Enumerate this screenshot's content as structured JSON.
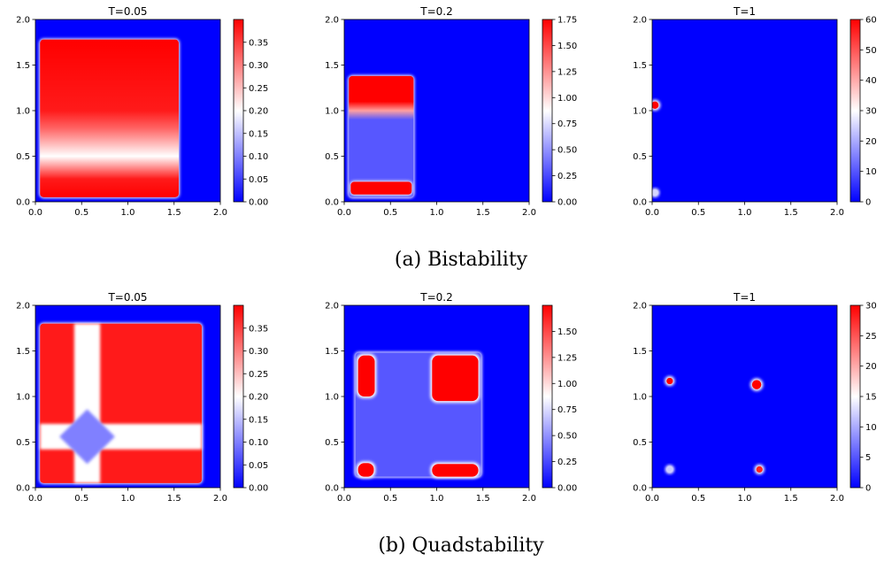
{
  "figure": {
    "rows": [
      {
        "caption": "(a) Bistability"
      },
      {
        "caption": "(b) Quadstability"
      }
    ]
  },
  "chart_data": [
    {
      "type": "heatmap",
      "row": 0,
      "col": 0,
      "title": "T=0.05",
      "xlim": [
        0,
        2
      ],
      "ylim": [
        0,
        2
      ],
      "xticks": [
        "0.0",
        "0.5",
        "1.0",
        "1.5",
        "2.0"
      ],
      "yticks": [
        "0.0",
        "0.5",
        "1.0",
        "1.5",
        "2.0"
      ],
      "colorbar": {
        "range": [
          0,
          0.4
        ],
        "ticks": [
          "0.00",
          "0.05",
          "0.10",
          "0.15",
          "0.20",
          "0.25",
          "0.30",
          "0.35"
        ],
        "tick_values": [
          0,
          0.05,
          0.1,
          0.15,
          0.2,
          0.25,
          0.3,
          0.35
        ]
      },
      "colormap": [
        "#0000ff",
        "#ffffff",
        "#ff0000"
      ],
      "regions": [
        {
          "shape": "rect",
          "x": [
            0.05,
            1.55
          ],
          "y": [
            0.05,
            1.78
          ],
          "gradient_y": [
            [
              0.05,
              0.4
            ],
            [
              0.25,
              0.38
            ],
            [
              0.5,
              0.2
            ],
            [
              0.8,
              0.32
            ],
            [
              1.0,
              0.38
            ],
            [
              1.78,
              0.4
            ]
          ]
        }
      ]
    },
    {
      "type": "heatmap",
      "row": 0,
      "col": 1,
      "title": "T=0.2",
      "xlim": [
        0,
        2
      ],
      "ylim": [
        0,
        2
      ],
      "xticks": [
        "0.0",
        "0.5",
        "1.0",
        "1.5",
        "2.0"
      ],
      "yticks": [
        "0.0",
        "0.5",
        "1.0",
        "1.5",
        "2.0"
      ],
      "colorbar": {
        "range": [
          0,
          1.75
        ],
        "ticks": [
          "0.00",
          "0.25",
          "0.50",
          "0.75",
          "1.00",
          "1.25",
          "1.50",
          "1.75"
        ],
        "tick_values": [
          0,
          0.25,
          0.5,
          0.75,
          1,
          1.25,
          1.5,
          1.75
        ]
      },
      "colormap": [
        "#0000ff",
        "#ffffff",
        "#ff0000"
      ],
      "regions": [
        {
          "shape": "rect",
          "x": [
            0.05,
            0.75
          ],
          "y": [
            0.05,
            1.38
          ],
          "gradient_y": [
            [
              0.05,
              0.3
            ],
            [
              0.9,
              0.3
            ],
            [
              1.0,
              1.2
            ],
            [
              1.1,
              1.75
            ],
            [
              1.38,
              1.75
            ]
          ]
        },
        {
          "shape": "rect",
          "x": [
            0.07,
            0.73
          ],
          "y": [
            0.08,
            0.22
          ],
          "value": 1.75
        }
      ]
    },
    {
      "type": "heatmap",
      "row": 0,
      "col": 2,
      "title": "T=1",
      "xlim": [
        0,
        2
      ],
      "ylim": [
        0,
        2
      ],
      "xticks": [
        "0.0",
        "0.5",
        "1.0",
        "1.5",
        "2.0"
      ],
      "yticks": [
        "0.0",
        "0.5",
        "1.0",
        "1.5",
        "2.0"
      ],
      "colorbar": {
        "range": [
          0,
          60
        ],
        "ticks": [
          "0",
          "10",
          "20",
          "30",
          "40",
          "50",
          "60"
        ],
        "tick_values": [
          0,
          10,
          20,
          30,
          40,
          50,
          60
        ]
      },
      "colormap": [
        "#0000ff",
        "#ffffff",
        "#ff0000"
      ],
      "regions": [
        {
          "shape": "spot",
          "x": 0.03,
          "y": 1.06,
          "r": 0.04,
          "value": 60
        },
        {
          "shape": "spot",
          "x": 0.03,
          "y": 0.1,
          "r": 0.03,
          "value": 25
        }
      ]
    },
    {
      "type": "heatmap",
      "row": 1,
      "col": 0,
      "title": "T=0.05",
      "xlim": [
        0,
        2
      ],
      "ylim": [
        0,
        2
      ],
      "xticks": [
        "0.0",
        "0.5",
        "1.0",
        "1.5",
        "2.0"
      ],
      "yticks": [
        "0.0",
        "0.5",
        "1.0",
        "1.5",
        "2.0"
      ],
      "colorbar": {
        "range": [
          0,
          0.4
        ],
        "ticks": [
          "0.00",
          "0.05",
          "0.10",
          "0.15",
          "0.20",
          "0.25",
          "0.30",
          "0.35"
        ],
        "tick_values": [
          0,
          0.05,
          0.1,
          0.15,
          0.2,
          0.25,
          0.3,
          0.35
        ]
      },
      "colormap": [
        "#0000ff",
        "#ffffff",
        "#ff0000"
      ],
      "regions": [
        {
          "shape": "rect",
          "x": [
            0.05,
            1.8
          ],
          "y": [
            0.05,
            1.8
          ],
          "value": 0.38
        },
        {
          "shape": "band",
          "orient": "vertical",
          "center": 0.56,
          "width": 0.28,
          "value": 0.2
        },
        {
          "shape": "band",
          "orient": "horizontal",
          "center": 0.56,
          "width": 0.28,
          "value": 0.2
        },
        {
          "shape": "diamond",
          "x": 0.56,
          "y": 0.56,
          "r": 0.3,
          "value": 0.1
        }
      ]
    },
    {
      "type": "heatmap",
      "row": 1,
      "col": 1,
      "title": "T=0.2",
      "xlim": [
        0,
        2
      ],
      "ylim": [
        0,
        2
      ],
      "xticks": [
        "0.0",
        "0.5",
        "1.0",
        "1.5",
        "2.0"
      ],
      "yticks": [
        "0.0",
        "0.5",
        "1.0",
        "1.5",
        "2.0"
      ],
      "colorbar": {
        "range": [
          0,
          1.75
        ],
        "ticks": [
          "0.00",
          "0.25",
          "0.50",
          "0.75",
          "1.00",
          "1.25",
          "1.50"
        ],
        "tick_values": [
          0,
          0.25,
          0.5,
          0.75,
          1,
          1.25,
          1.5
        ]
      },
      "colormap": [
        "#0000ff",
        "#ffffff",
        "#ff0000"
      ],
      "regions": [
        {
          "shape": "rect",
          "x": [
            0.12,
            1.48
          ],
          "y": [
            0.12,
            1.48
          ],
          "value": 0.3
        },
        {
          "shape": "blob",
          "x": [
            0.15,
            0.33
          ],
          "y": [
            1.0,
            1.45
          ],
          "value": 1.75
        },
        {
          "shape": "blob",
          "x": [
            0.95,
            1.45
          ],
          "y": [
            0.95,
            1.45
          ],
          "value": 1.75
        },
        {
          "shape": "blob",
          "x": [
            0.15,
            0.32
          ],
          "y": [
            0.12,
            0.27
          ],
          "value": 1.75
        },
        {
          "shape": "blob",
          "x": [
            0.95,
            1.45
          ],
          "y": [
            0.12,
            0.26
          ],
          "value": 1.75
        }
      ]
    },
    {
      "type": "heatmap",
      "row": 1,
      "col": 2,
      "title": "T=1",
      "xlim": [
        0,
        2
      ],
      "ylim": [
        0,
        2
      ],
      "xticks": [
        "0.0",
        "0.5",
        "1.0",
        "1.5",
        "2.0"
      ],
      "yticks": [
        "0.0",
        "0.5",
        "1.0",
        "1.5",
        "2.0"
      ],
      "colorbar": {
        "range": [
          0,
          30
        ],
        "ticks": [
          "0",
          "5",
          "10",
          "15",
          "20",
          "25",
          "30"
        ],
        "tick_values": [
          0,
          5,
          10,
          15,
          20,
          25,
          30
        ]
      },
      "colormap": [
        "#0000ff",
        "#ffffff",
        "#ff0000"
      ],
      "regions": [
        {
          "shape": "spot",
          "x": 0.19,
          "y": 1.17,
          "r": 0.035,
          "value": 30
        },
        {
          "shape": "spot",
          "x": 1.13,
          "y": 1.13,
          "r": 0.05,
          "value": 30
        },
        {
          "shape": "spot",
          "x": 0.19,
          "y": 0.2,
          "r": 0.03,
          "value": 12
        },
        {
          "shape": "spot",
          "x": 1.16,
          "y": 0.2,
          "r": 0.035,
          "value": 28
        }
      ]
    }
  ]
}
